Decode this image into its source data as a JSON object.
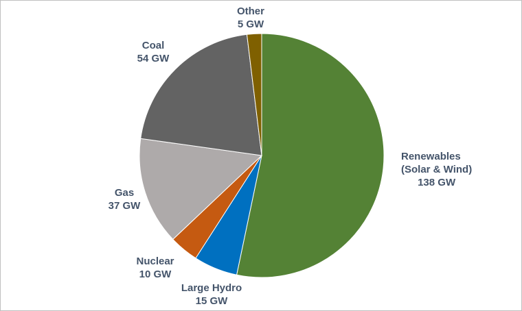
{
  "chart_data": {
    "type": "pie",
    "title": "",
    "unit": "GW",
    "start_angle_deg": 0,
    "direction": "clockwise",
    "slices": [
      {
        "key": "renewables",
        "label_lines": [
          "Renewables",
          "(Solar & Wind)"
        ],
        "value_label": "138 GW",
        "value": 138,
        "color": "#548235"
      },
      {
        "key": "large-hydro",
        "label_lines": [
          "Large Hydro"
        ],
        "value_label": "15 GW",
        "value": 15,
        "color": "#0070c0"
      },
      {
        "key": "nuclear",
        "label_lines": [
          "Nuclear"
        ],
        "value_label": "10 GW",
        "value": 10,
        "color": "#c55a11"
      },
      {
        "key": "gas",
        "label_lines": [
          "Gas"
        ],
        "value_label": "37 GW",
        "value": 37,
        "color": "#aeaaaa"
      },
      {
        "key": "coal",
        "label_lines": [
          "Coal"
        ],
        "value_label": "54 GW",
        "value": 54,
        "color": "#636363"
      },
      {
        "key": "other",
        "label_lines": [
          "Other"
        ],
        "value_label": "5 GW",
        "value": 5,
        "color": "#7f6000"
      }
    ]
  }
}
